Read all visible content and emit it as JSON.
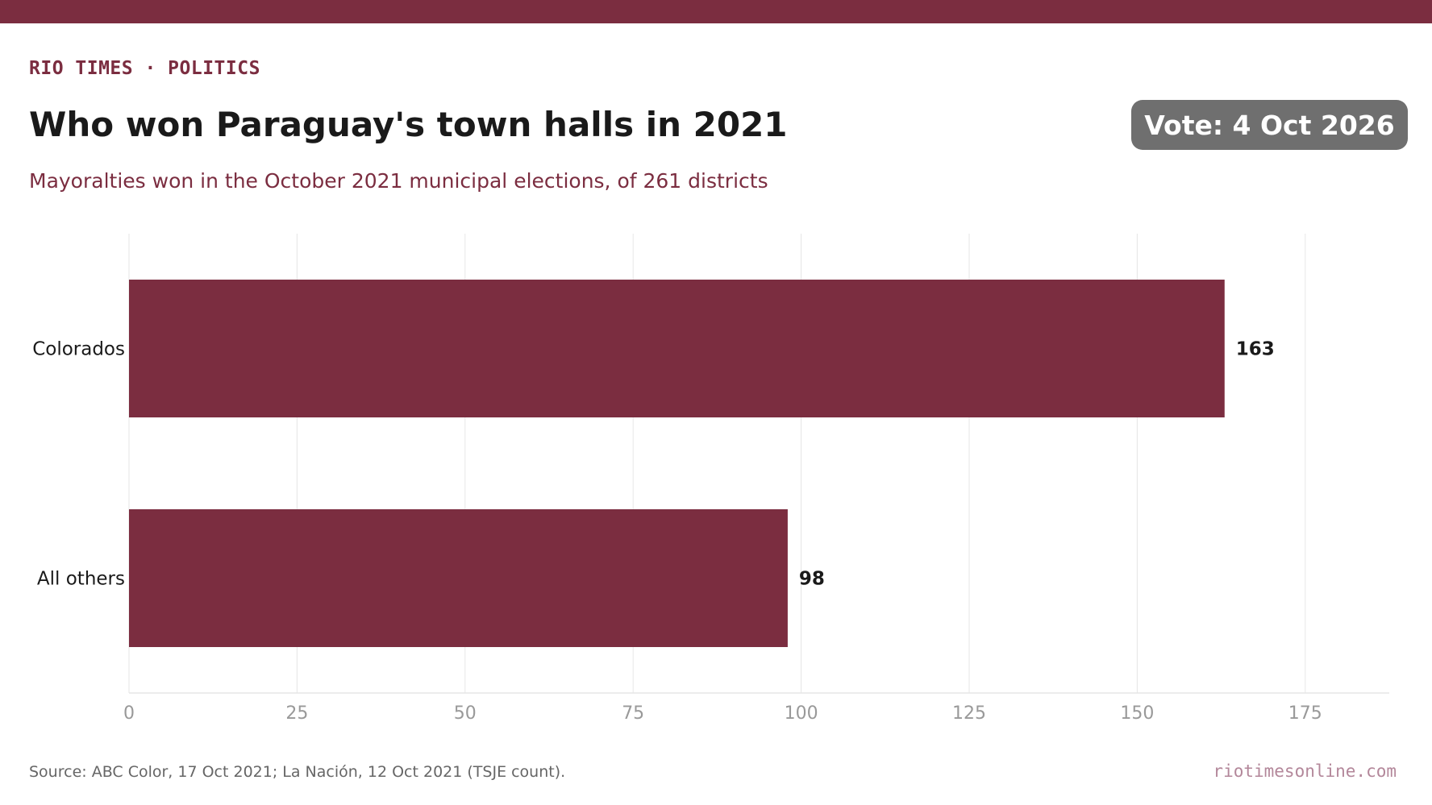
{
  "header": {
    "kicker": "RIO TIMES · POLITICS",
    "title": "Who won Paraguay's town halls in 2021",
    "subtitle": "Mayoralties won in the October 2021 municipal elections, of 261 districts",
    "badge": "Vote: 4 Oct 2026"
  },
  "footer": {
    "source": "Source: ABC Color, 17 Oct 2021; La Nación, 12 Oct 2021 (TSJE count).",
    "site": "riotimesonline.com"
  },
  "colors": {
    "brand": "#7b2d40",
    "badge_bg": "#6f6f6f",
    "site_text": "#b3879a",
    "grid": "#e6e6e6",
    "tick_text": "#999999",
    "label_text": "#1a1a1a"
  },
  "chart_data": {
    "type": "bar",
    "orientation": "horizontal",
    "categories": [
      "Colorados",
      "All others"
    ],
    "values": [
      163,
      98
    ],
    "data_labels": [
      "163",
      "98"
    ],
    "xlim": [
      0,
      187.5
    ],
    "x_ticks": [
      0,
      25,
      50,
      75,
      100,
      125,
      150,
      175
    ],
    "x_tick_labels": [
      "0",
      "25",
      "50",
      "75",
      "100",
      "125",
      "150",
      "175"
    ],
    "grid": "vertical",
    "legend": "none"
  }
}
